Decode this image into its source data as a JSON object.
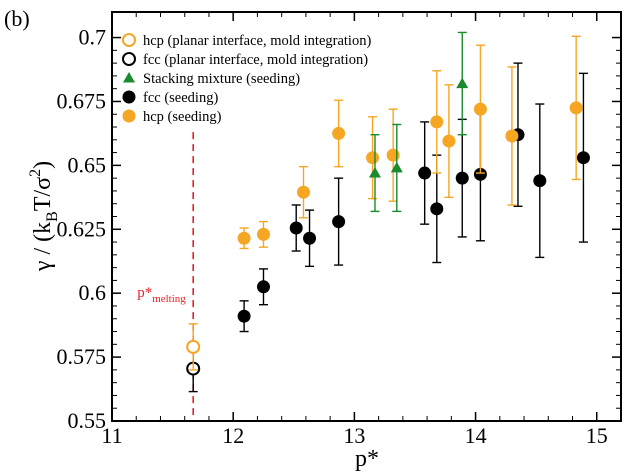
{
  "chart_data": {
    "type": "scatter",
    "panel_label": "(b)",
    "xlabel": "p*",
    "ylabel_parts": {
      "base": "γ / (k",
      "sub_b": "B",
      "mid": "T/σ",
      "sup": "2",
      "end": ")"
    },
    "xlim": [
      11,
      15.2
    ],
    "ylim": [
      0.55,
      0.71
    ],
    "x_ticks": [
      11,
      12,
      13,
      14,
      15
    ],
    "x_tick_labels": [
      "11",
      "12",
      "13",
      "14",
      "15"
    ],
    "y_ticks": [
      0.55,
      0.575,
      0.6,
      0.625,
      0.65,
      0.675,
      0.7
    ],
    "y_tick_labels": [
      "0.55",
      "0.575",
      "0.6",
      "0.625",
      "0.65",
      "0.675",
      "0.7"
    ],
    "grid": false,
    "legend_position": "top-left",
    "annotation": {
      "text": "p*",
      "sub": "melting",
      "x": 11.67,
      "color": "#e8202a"
    },
    "series": [
      {
        "name": "hcp (planar interface, mold integration)",
        "color": "#f5a623",
        "marker": "circle-open",
        "points": [
          {
            "x": 11.67,
            "y": 0.579,
            "err": 0.009
          }
        ]
      },
      {
        "name": "fcc (planar interface, mold integration)",
        "color": "#000000",
        "marker": "circle-open",
        "points": [
          {
            "x": 11.67,
            "y": 0.5705,
            "err": 0.009
          }
        ]
      },
      {
        "name": "Stacking mixture (seeding)",
        "color": "#1a8a2e",
        "marker": "triangle",
        "points": [
          {
            "x": 13.17,
            "y": 0.647,
            "err": 0.015
          },
          {
            "x": 13.35,
            "y": 0.649,
            "err": 0.017
          },
          {
            "x": 13.89,
            "y": 0.682,
            "err": 0.02
          }
        ]
      },
      {
        "name": "fcc (seeding)",
        "color": "#000000",
        "marker": "circle",
        "points": [
          {
            "x": 12.09,
            "y": 0.591,
            "err": 0.006
          },
          {
            "x": 12.25,
            "y": 0.6025,
            "err": 0.007
          },
          {
            "x": 12.52,
            "y": 0.6255,
            "err": 0.009
          },
          {
            "x": 12.63,
            "y": 0.6215,
            "err": 0.011
          },
          {
            "x": 12.87,
            "y": 0.628,
            "err": 0.017
          },
          {
            "x": 13.58,
            "y": 0.647,
            "err": 0.02
          },
          {
            "x": 13.68,
            "y": 0.633,
            "err": 0.021
          },
          {
            "x": 13.89,
            "y": 0.645,
            "err": 0.023
          },
          {
            "x": 14.04,
            "y": 0.6465,
            "err": 0.026
          },
          {
            "x": 14.35,
            "y": 0.662,
            "err": 0.028
          },
          {
            "x": 14.53,
            "y": 0.644,
            "err": 0.03
          },
          {
            "x": 14.89,
            "y": 0.653,
            "err": 0.033
          }
        ]
      },
      {
        "name": "hcp (seeding)",
        "color": "#f5a623",
        "marker": "circle",
        "points": [
          {
            "x": 12.09,
            "y": 0.6215,
            "err": 0.004
          },
          {
            "x": 12.25,
            "y": 0.623,
            "err": 0.005
          },
          {
            "x": 12.58,
            "y": 0.6395,
            "err": 0.01
          },
          {
            "x": 12.87,
            "y": 0.6625,
            "err": 0.013
          },
          {
            "x": 13.15,
            "y": 0.653,
            "err": 0.016
          },
          {
            "x": 13.32,
            "y": 0.654,
            "err": 0.018
          },
          {
            "x": 13.68,
            "y": 0.667,
            "err": 0.02
          },
          {
            "x": 13.78,
            "y": 0.6595,
            "err": 0.022
          },
          {
            "x": 14.04,
            "y": 0.672,
            "err": 0.025
          },
          {
            "x": 14.3,
            "y": 0.6615,
            "err": 0.027
          },
          {
            "x": 14.83,
            "y": 0.6725,
            "err": 0.028
          }
        ]
      }
    ]
  }
}
